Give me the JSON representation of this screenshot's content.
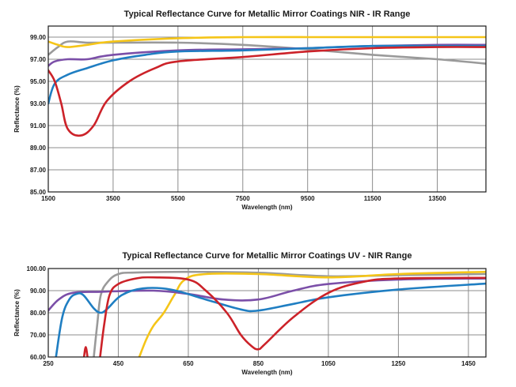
{
  "chart_data": [
    {
      "type": "line",
      "title": "Typical Reflectance Curve for Metallic Mirror Coatings NIR - IR Range",
      "xlabel": "Wavelength (nm)",
      "ylabel": "Reflectance (%)",
      "xlim": [
        1500,
        15000
      ],
      "ylim": [
        85,
        100
      ],
      "xticks": [
        1500,
        3500,
        5500,
        7500,
        9500,
        11500,
        13500
      ],
      "yticks": [
        85,
        87,
        89,
        91,
        93,
        95,
        97,
        99
      ],
      "xtick_labels": [
        "1500",
        "3500",
        "5500",
        "7500",
        "9500",
        "11500",
        "13500"
      ],
      "ytick_labels": [
        "85.00",
        "87.00",
        "89.00",
        "91.00",
        "93.00",
        "95.00",
        "97.00",
        "99.00"
      ],
      "grid": true,
      "series": [
        {
          "color": "#9a9a9a",
          "points": [
            [
              1500,
              97.4
            ],
            [
              1800,
              98.1
            ],
            [
              2100,
              98.6
            ],
            [
              2700,
              98.5
            ],
            [
              3500,
              98.5
            ],
            [
              5500,
              98.5
            ],
            [
              7500,
              98.3
            ],
            [
              9500,
              97.9
            ],
            [
              11500,
              97.4
            ],
            [
              13500,
              97.0
            ],
            [
              15000,
              96.6
            ]
          ]
        },
        {
          "color": "#f5c518",
          "points": [
            [
              1500,
              98.6
            ],
            [
              1800,
              98.3
            ],
            [
              2100,
              98.1
            ],
            [
              2700,
              98.3
            ],
            [
              3500,
              98.6
            ],
            [
              5500,
              98.9
            ],
            [
              7500,
              99.0
            ],
            [
              9500,
              99.0
            ],
            [
              11500,
              99.0
            ],
            [
              13500,
              99.0
            ],
            [
              15000,
              99.0
            ]
          ]
        },
        {
          "color": "#7b4fa8",
          "points": [
            [
              1500,
              96.4
            ],
            [
              1700,
              96.8
            ],
            [
              2100,
              97.0
            ],
            [
              2700,
              97.0
            ],
            [
              3500,
              97.4
            ],
            [
              5500,
              97.8
            ],
            [
              7500,
              97.9
            ],
            [
              9500,
              98.0
            ],
            [
              11500,
              98.2
            ],
            [
              13500,
              98.3
            ],
            [
              15000,
              98.3
            ]
          ]
        },
        {
          "color": "#1f7ec2",
          "points": [
            [
              1500,
              93.0
            ],
            [
              1700,
              94.8
            ],
            [
              2100,
              95.6
            ],
            [
              2700,
              96.2
            ],
            [
              3500,
              96.9
            ],
            [
              4500,
              97.4
            ],
            [
              5500,
              97.7
            ],
            [
              7500,
              97.8
            ],
            [
              9500,
              98.0
            ],
            [
              11500,
              98.2
            ],
            [
              13500,
              98.2
            ],
            [
              15000,
              98.2
            ]
          ]
        },
        {
          "color": "#cc2229",
          "points": [
            [
              1500,
              96.0
            ],
            [
              1700,
              95.0
            ],
            [
              1900,
              93.0
            ],
            [
              2100,
              90.7
            ],
            [
              2500,
              90.1
            ],
            [
              2900,
              91.0
            ],
            [
              3300,
              93.2
            ],
            [
              4000,
              95.0
            ],
            [
              4800,
              96.2
            ],
            [
              5500,
              96.8
            ],
            [
              7500,
              97.2
            ],
            [
              9500,
              97.7
            ],
            [
              11500,
              98.0
            ],
            [
              13500,
              98.1
            ],
            [
              15000,
              98.1
            ]
          ]
        }
      ]
    },
    {
      "type": "line",
      "title": "Typical Reflectance Curve for Metallic Mirror Coatings UV - NIR Range",
      "xlabel": "Wavelength (nm)",
      "ylabel": "Reflectance (%)",
      "xlim": [
        250,
        1500
      ],
      "ylim": [
        60,
        100
      ],
      "xticks": [
        250,
        450,
        650,
        850,
        1050,
        1250,
        1450
      ],
      "yticks": [
        60,
        70,
        80,
        90,
        100
      ],
      "xtick_labels": [
        "250",
        "450",
        "650",
        "850",
        "1050",
        "1250",
        "1450"
      ],
      "ytick_labels": [
        "60.00",
        "70.00",
        "80.00",
        "90.00",
        "100.00"
      ],
      "grid": true,
      "series": [
        {
          "color": "#9a9a9a",
          "points": [
            [
              380,
              60
            ],
            [
              390,
              75
            ],
            [
              400,
              88
            ],
            [
              420,
              94
            ],
            [
              450,
              97.5
            ],
            [
              500,
              98.2
            ],
            [
              650,
              98.5
            ],
            [
              850,
              98.1
            ],
            [
              1050,
              96.5
            ],
            [
              1250,
              97.0
            ],
            [
              1500,
              97.5
            ]
          ]
        },
        {
          "color": "#f5c518",
          "points": [
            [
              510,
              60
            ],
            [
              530,
              68
            ],
            [
              550,
              74
            ],
            [
              580,
              80
            ],
            [
              610,
              88
            ],
            [
              640,
              95
            ],
            [
              700,
              97.5
            ],
            [
              850,
              97.5
            ],
            [
              1050,
              96.0
            ],
            [
              1250,
              97.5
            ],
            [
              1500,
              98.5
            ]
          ]
        },
        {
          "color": "#7b4fa8",
          "points": [
            [
              250,
              81
            ],
            [
              280,
              86
            ],
            [
              320,
              89
            ],
            [
              400,
              89.5
            ],
            [
              550,
              90
            ],
            [
              650,
              88.5
            ],
            [
              750,
              86
            ],
            [
              850,
              86
            ],
            [
              950,
              90
            ],
            [
              1050,
              93
            ],
            [
              1250,
              95
            ],
            [
              1500,
              95.5
            ]
          ]
        },
        {
          "color": "#1f7ec2",
          "points": [
            [
              272,
              60
            ],
            [
              290,
              78
            ],
            [
              310,
              86
            ],
            [
              330,
              88.5
            ],
            [
              350,
              88
            ],
            [
              380,
              82
            ],
            [
              400,
              80
            ],
            [
              420,
              82
            ],
            [
              460,
              88
            ],
            [
              520,
              91
            ],
            [
              600,
              90.5
            ],
            [
              700,
              86
            ],
            [
              800,
              81.5
            ],
            [
              850,
              81
            ],
            [
              950,
              84
            ],
            [
              1050,
              87
            ],
            [
              1250,
              90.5
            ],
            [
              1500,
              93.2
            ]
          ]
        },
        {
          "color": "#cc2229",
          "points": [
            [
              352,
              60
            ],
            [
              357,
              64.5
            ],
            [
              362,
              60
            ]
          ]
        },
        {
          "color": "#cc2229",
          "points": [
            [
              398,
              60
            ],
            [
              410,
              75
            ],
            [
              425,
              88
            ],
            [
              450,
              93
            ],
            [
              500,
              95.5
            ],
            [
              550,
              96
            ],
            [
              650,
              95
            ],
            [
              700,
              90
            ],
            [
              760,
              80
            ],
            [
              800,
              70
            ],
            [
              830,
              65
            ],
            [
              850,
              63.5
            ],
            [
              870,
              66
            ],
            [
              950,
              78
            ],
            [
              1050,
              89
            ],
            [
              1150,
              94
            ],
            [
              1250,
              95.5
            ],
            [
              1500,
              95.8
            ]
          ]
        }
      ]
    }
  ]
}
